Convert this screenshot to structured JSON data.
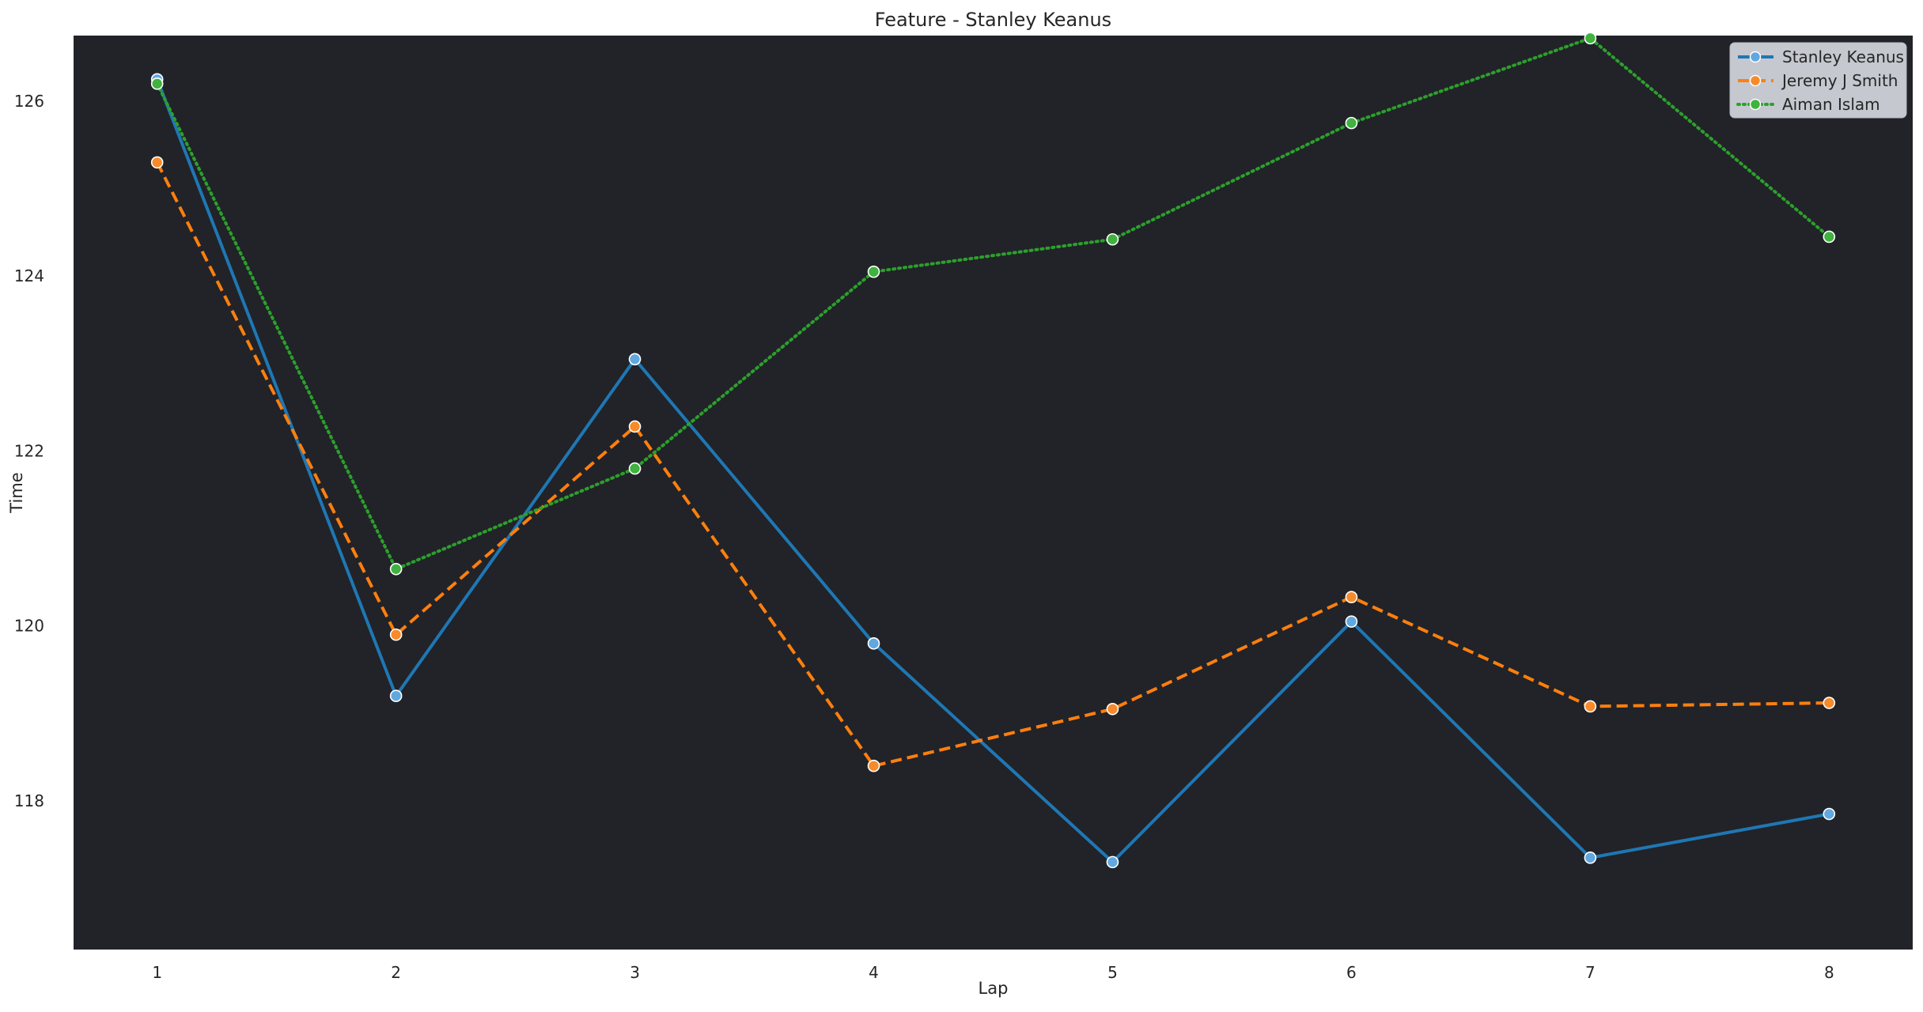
{
  "chart_data": {
    "type": "line",
    "title": "Feature - Stanley Keanus",
    "xlabel": "Lap",
    "ylabel": "Time",
    "x": [
      1,
      2,
      3,
      4,
      5,
      6,
      7,
      8
    ],
    "xlim": [
      0.65,
      8.35
    ],
    "ylim": [
      116.3,
      126.75
    ],
    "yticks": [
      118,
      120,
      122,
      124,
      126
    ],
    "grid": false,
    "legend_position": "top-right",
    "plot_background": "#212328",
    "legend_background": "#c9ccd3",
    "series": [
      {
        "name": "Stanley Keanus",
        "color": "#1f77b4",
        "marker_color": "#60a8df",
        "line_style": "solid",
        "values": [
          126.25,
          119.2,
          123.05,
          119.8,
          117.3,
          120.05,
          117.35,
          117.85
        ]
      },
      {
        "name": "Jeremy J Smith",
        "color": "#ff7f0e",
        "marker_color": "#f78a2a",
        "line_style": "dashed",
        "values": [
          125.3,
          119.9,
          122.28,
          118.4,
          119.05,
          120.33,
          119.08,
          119.12
        ]
      },
      {
        "name": "Aiman Islam",
        "color": "#2ca02c",
        "marker_color": "#3fb23f",
        "line_style": "dotted",
        "values": [
          126.2,
          120.65,
          121.8,
          124.05,
          124.42,
          125.75,
          126.72,
          124.45
        ]
      }
    ]
  }
}
